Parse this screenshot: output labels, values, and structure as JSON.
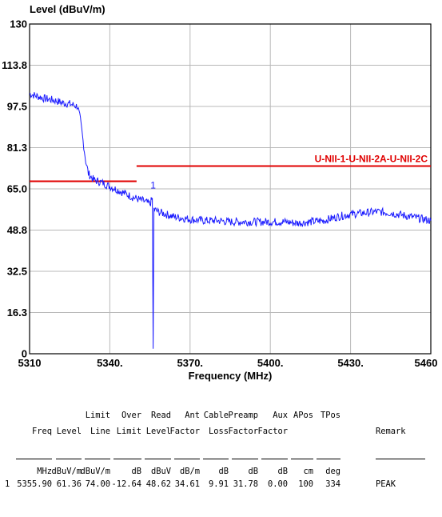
{
  "chart_data": {
    "type": "line",
    "ylabel": "Level (dBuV/m)",
    "xlabel": "Frequency (MHz)",
    "xlim": [
      5310,
      5460
    ],
    "ylim": [
      0,
      130
    ],
    "x_ticks": [
      "5310",
      "5340.",
      "5370.",
      "5400.",
      "5430.",
      "5460"
    ],
    "y_ticks": [
      "130",
      "113.8",
      "97.5",
      "81.3",
      "65.0",
      "48.8",
      "32.5",
      "16.3",
      "0"
    ],
    "grid": true,
    "series": [
      {
        "color": "#1a1aff",
        "x": [
          5310,
          5313,
          5316,
          5319,
          5322,
          5325,
          5328,
          5329,
          5330,
          5331,
          5332,
          5334,
          5337,
          5340,
          5343,
          5346,
          5349,
          5352,
          5355,
          5355.9,
          5356.2,
          5356.5,
          5358,
          5361,
          5364,
          5367,
          5370,
          5375,
          5380,
          5385,
          5390,
          5395,
          5400,
          5405,
          5410,
          5415,
          5420,
          5425,
          5430,
          5435,
          5440,
          5445,
          5450,
          5455,
          5460
        ],
        "y": [
          102.5,
          101.5,
          100.5,
          100.0,
          99.0,
          98.5,
          97.5,
          92.0,
          84.0,
          76.0,
          71.0,
          68.5,
          67.5,
          66.0,
          64.5,
          63.0,
          61.5,
          60.5,
          59.0,
          61.36,
          2.0,
          57.0,
          56.0,
          55.0,
          54.0,
          53.5,
          53.0,
          52.5,
          52.5,
          52.0,
          52.0,
          52.0,
          52.0,
          52.0,
          51.5,
          52.0,
          52.5,
          54.0,
          55.0,
          55.5,
          56.0,
          55.5,
          54.5,
          53.5,
          52.5
        ]
      }
    ],
    "limit_lines": [
      {
        "name": "",
        "x": [
          5310,
          5350
        ],
        "y": 68.0,
        "color": "#e00000"
      },
      {
        "name": "U-NII-1-U-NII-2A-U-NII-2C",
        "x": [
          5350,
          5460
        ],
        "y": 74.0,
        "color": "#e00000"
      }
    ],
    "markers": [
      {
        "label": "1",
        "x": 5355.9,
        "y": 61.36
      }
    ]
  },
  "table": {
    "header_row1": [
      "",
      "",
      "",
      "Limit",
      "Over",
      "Read",
      "Ant",
      "Cable",
      "Preamp",
      "Aux",
      "APos",
      "TPos",
      ""
    ],
    "header_row2": [
      "",
      "Freq",
      "Level",
      "Line",
      "Limit",
      "Level",
      "Factor",
      "Loss",
      "Factor",
      "Factor",
      "",
      "",
      "Remark"
    ],
    "units": [
      "",
      "MHz",
      "dBuV/m",
      "dBuV/m",
      "dB",
      "dBuV",
      "dB/m",
      "dB",
      "dB",
      "dB",
      "cm",
      "deg",
      ""
    ],
    "rows": [
      [
        "1",
        "5355.90",
        "61.36",
        "74.00",
        "-12.64",
        "48.62",
        "34.61",
        "9.91",
        "31.78",
        "0.00",
        "100",
        "334",
        "PEAK"
      ]
    ]
  }
}
